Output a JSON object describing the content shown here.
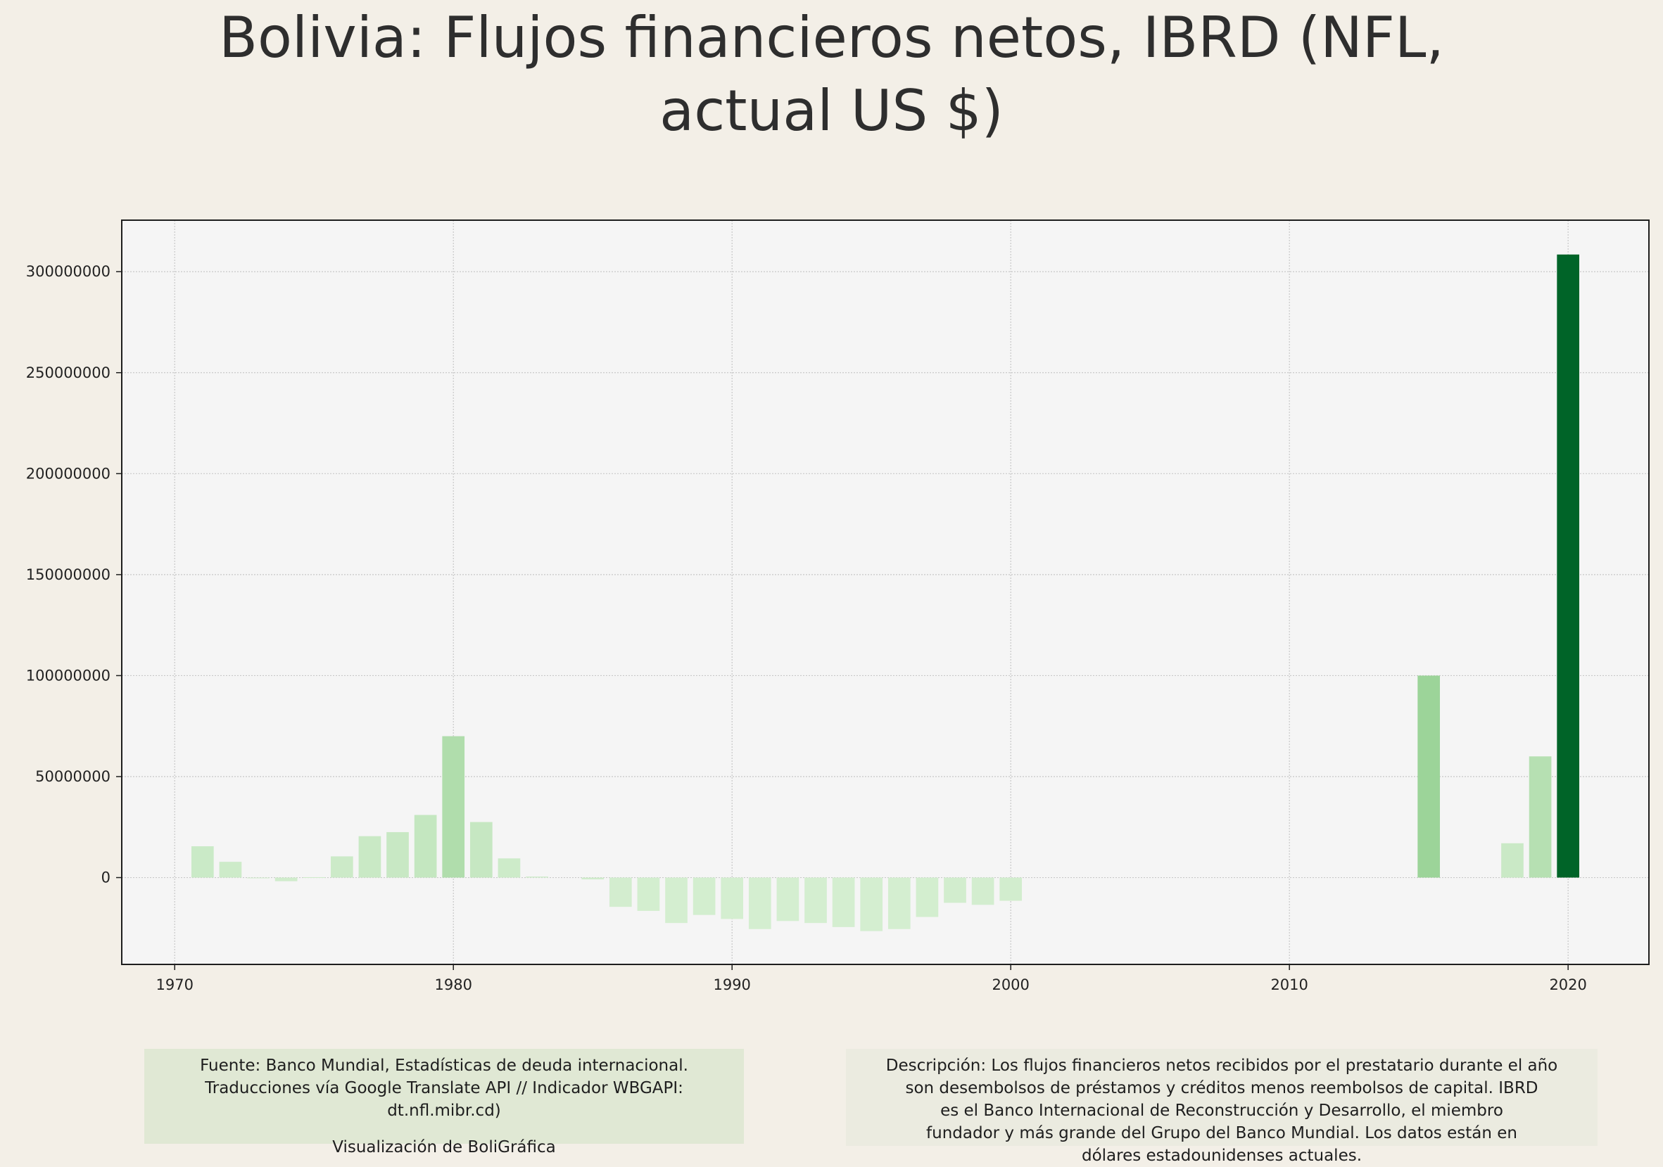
{
  "title_line1": "Bolivia:  Flujos financieros netos, IBRD (NFL,",
  "title_line2": "actual US $)",
  "chart_data": {
    "type": "bar",
    "x": [
      1971,
      1972,
      1973,
      1974,
      1975,
      1976,
      1977,
      1978,
      1979,
      1980,
      1981,
      1982,
      1983,
      1985,
      1986,
      1987,
      1988,
      1989,
      1990,
      1991,
      1992,
      1993,
      1994,
      1995,
      1996,
      1997,
      1998,
      1999,
      2000,
      2015,
      2018,
      2019,
      2020
    ],
    "values": [
      15500000,
      7800000,
      0,
      -1800000,
      200000,
      10500000,
      20500000,
      22500000,
      31000000,
      70000000,
      27500000,
      9500000,
      500000,
      -900000,
      -14500000,
      -16500000,
      -22500000,
      -18500000,
      -20500000,
      -25500000,
      -21500000,
      -22500000,
      -24500000,
      -26500000,
      -25500000,
      -19500000,
      -12500000,
      -13500000,
      -11500000,
      100000000,
      17000000,
      60000000,
      308500000
    ],
    "xlim": [
      1968.1,
      2022.9
    ],
    "ylim": [
      -43000000,
      325500000
    ],
    "xticks": [
      1970,
      1980,
      1990,
      2000,
      2010,
      2020
    ],
    "yticks": [
      0,
      50000000,
      100000000,
      150000000,
      200000000,
      250000000,
      300000000
    ],
    "xtick_labels": [
      "1970",
      "1980",
      "1990",
      "2000",
      "2010",
      "2020"
    ],
    "ytick_labels": [
      "0",
      "50000000",
      "100000000",
      "150000000",
      "200000000",
      "250000000",
      "300000000"
    ],
    "grid": true,
    "colormap": "greens",
    "colors": {
      "bar_low": "#d4eed0",
      "bar_high": "#006428",
      "plot_bg": "#f5f5f5",
      "grid": "#c8c8c8",
      "frame": "#1e1e1e"
    }
  },
  "source_box": {
    "line1": "Fuente: Banco Mundial, Estadísticas de deuda internacional.",
    "line2": "Traducciones vía Google Translate API // Indicador WBGAPI:",
    "line3": "dt.nfl.mibr.cd)",
    "line4": "Visualización de BoliGráfica"
  },
  "description_box": {
    "line1": "Descripción: Los flujos financieros netos recibidos por el prestatario durante el año",
    "line2": "son desembolsos de préstamos y créditos menos reembolsos de capital. IBRD",
    "line3": "es el Banco Internacional de Reconstrucción y Desarrollo, el miembro",
    "line4": "fundador y más grande del Grupo del Banco Mundial. Los datos están en",
    "line5": "dólares estadounidenses actuales."
  }
}
